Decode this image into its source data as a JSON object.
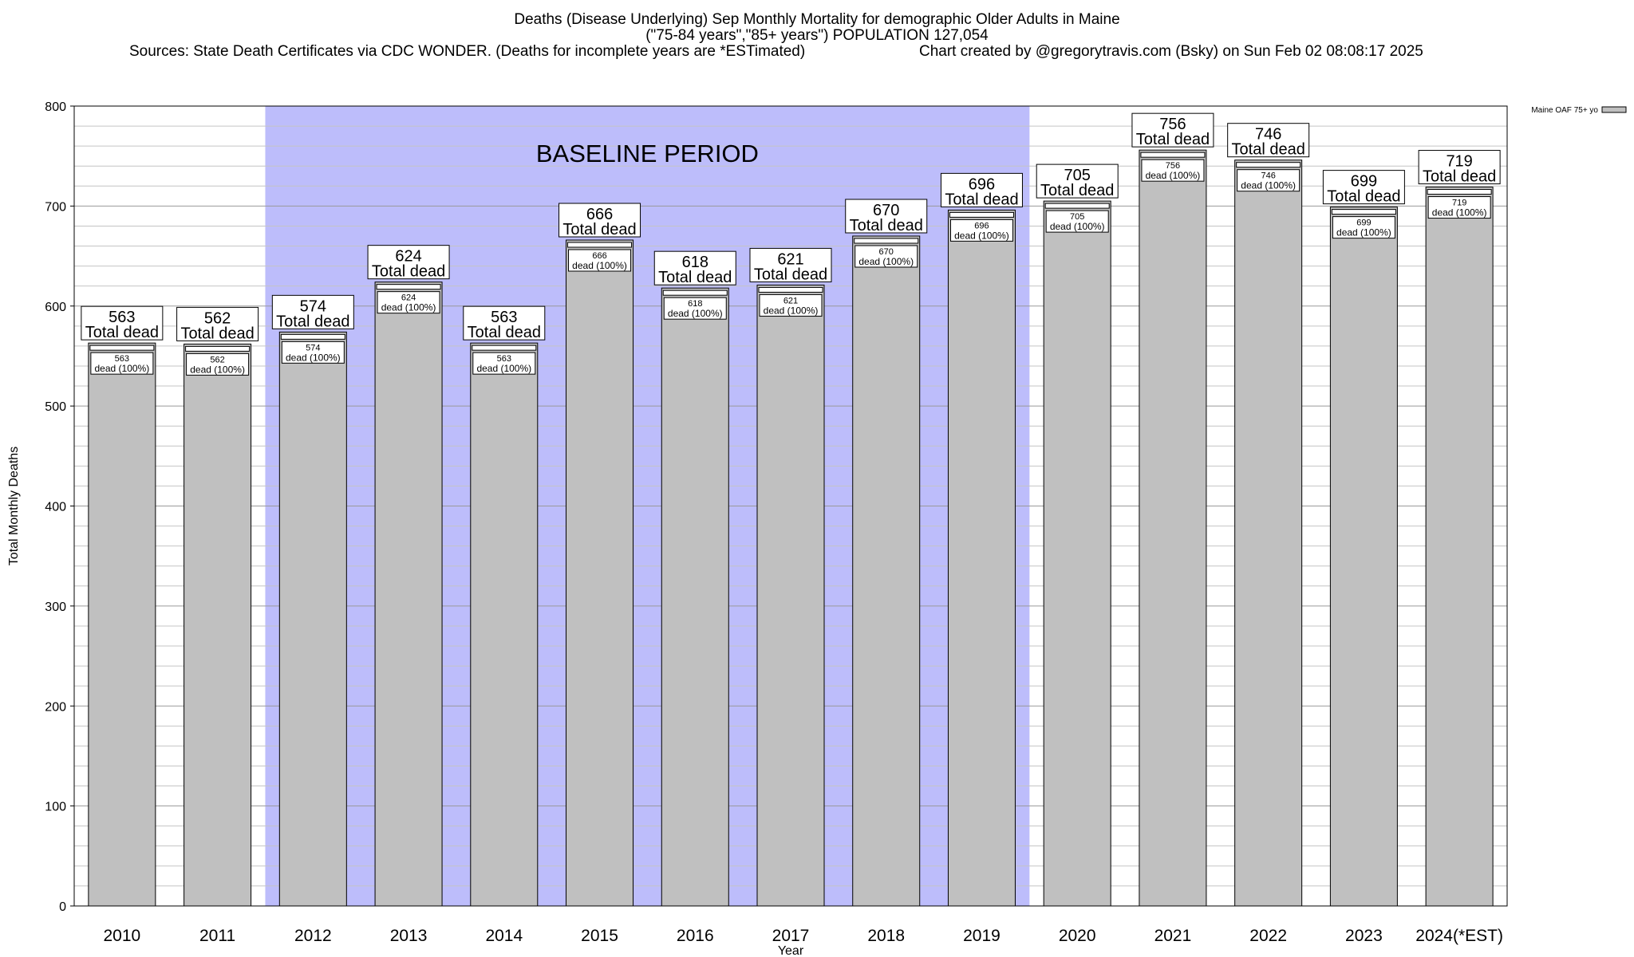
{
  "chart_data": {
    "type": "bar",
    "title": "Deaths (Disease Underlying) Sep Monthly Mortality for demographic Older Adults in Maine",
    "subtitle": "(\"75-84 years\",\"85+ years\") POPULATION 127,054",
    "source_note": "Sources: State Death Certificates via CDC WONDER. (Deaths for incomplete years are *ESTimated)",
    "credit_note": "Chart created by @gregorytravis.com (Bsky) on Sun Feb 02 08:08:17 2025",
    "xlabel": "Year",
    "ylabel": "Total Monthly Deaths",
    "ylim": [
      0,
      800
    ],
    "yticks": [
      0,
      100,
      200,
      300,
      400,
      500,
      600,
      700,
      800
    ],
    "minor_grid_step": 20,
    "categories": [
      "2010",
      "2011",
      "2012",
      "2013",
      "2014",
      "2015",
      "2016",
      "2017",
      "2018",
      "2019",
      "2020",
      "2021",
      "2022",
      "2023",
      "2024(*EST)"
    ],
    "series": [
      {
        "name": "Maine OAF 75+ yo",
        "color": "#c0c0c0",
        "values": [
          563,
          562,
          574,
          624,
          563,
          666,
          618,
          621,
          670,
          696,
          705,
          756,
          746,
          699,
          719
        ]
      }
    ],
    "total_label_suffix": "Total dead",
    "inner_label_suffix": "dead (100%)",
    "baseline": {
      "label": "BASELINE PERIOD",
      "start": "2012",
      "end": "2019",
      "color": "#bdbdfb"
    },
    "legend": {
      "label": "Maine OAF 75+ yo",
      "placement": "top-right"
    }
  }
}
